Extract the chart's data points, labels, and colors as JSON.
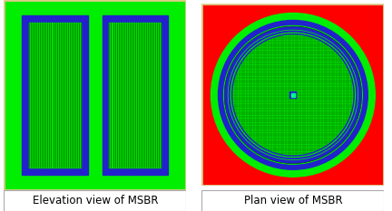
{
  "fig_width": 4.32,
  "fig_height": 2.33,
  "dpi": 100,
  "bg_color": "#ffffff",
  "left_panel": {
    "outer_bg": "#00ee00",
    "blue_color": "#2222cc",
    "inner_green": "#00dd00",
    "grid_color": "#005500",
    "n_vertical_lines": 28,
    "label": "Elevation view of MSBR"
  },
  "right_panel": {
    "outer_bg": "#ff0000",
    "large_green_r": 0.9,
    "annular_green": "#00ee00",
    "blue_outer_r": 0.82,
    "blue_inner_r": 0.76,
    "inner_green_r": 0.73,
    "core_green": "#00dd00",
    "core_r": 0.68,
    "blue_color": "#2222cc",
    "grid_color": "#005500",
    "radial_color": "#005500",
    "n_radial": 90,
    "n_grid": 25,
    "label": "Plan view of MSBR"
  },
  "label_fontsize": 8.5,
  "border_color": "#ddcc88"
}
